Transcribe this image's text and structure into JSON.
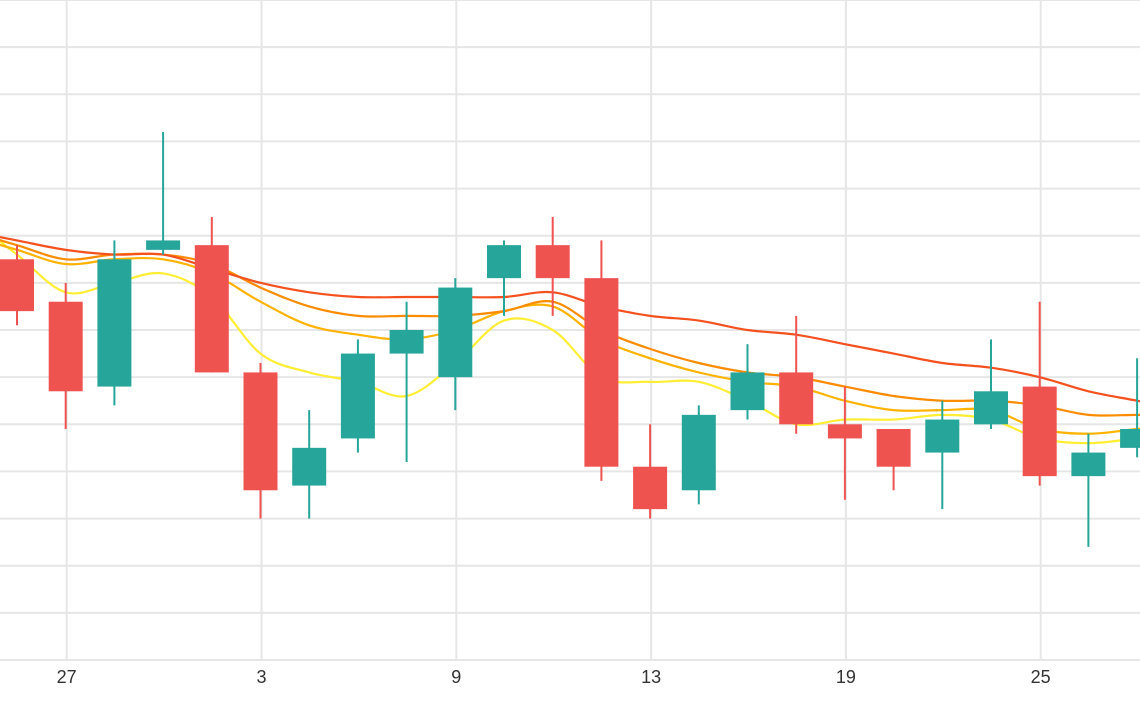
{
  "chart_data": {
    "type": "candlestick",
    "grid": true,
    "x_tick_labels": [
      "27",
      "3",
      "9",
      "13",
      "19",
      "25"
    ],
    "y_tick_labels": [],
    "colors": {
      "up": "#26a69a",
      "down": "#ef5350",
      "grid": "#e6e6e6",
      "ma_fast": "#ffee33",
      "ma_2": "#ffb300",
      "ma_3": "#fb8c00",
      "ma_slow": "#f4511e"
    },
    "ylim": [
      0,
      14
    ],
    "x_ticks_at_index": [
      1,
      5,
      9,
      13,
      17,
      21
    ],
    "candles": [
      {
        "open": 8.5,
        "close": 7.4,
        "high": 8.8,
        "low": 7.1
      },
      {
        "open": 7.6,
        "close": 5.7,
        "high": 8.0,
        "low": 4.9
      },
      {
        "open": 5.8,
        "close": 8.5,
        "high": 8.9,
        "low": 5.4
      },
      {
        "open": 8.7,
        "close": 8.9,
        "high": 11.2,
        "low": 8.6
      },
      {
        "open": 8.8,
        "close": 6.1,
        "high": 9.4,
        "low": 6.1
      },
      {
        "open": 6.1,
        "close": 3.6,
        "high": 6.3,
        "low": 3.0
      },
      {
        "open": 3.7,
        "close": 4.5,
        "high": 5.3,
        "low": 3.0
      },
      {
        "open": 4.7,
        "close": 6.5,
        "high": 6.8,
        "low": 4.4
      },
      {
        "open": 6.5,
        "close": 7.0,
        "high": 7.6,
        "low": 4.2
      },
      {
        "open": 6.0,
        "close": 7.9,
        "high": 8.1,
        "low": 5.3
      },
      {
        "open": 8.1,
        "close": 8.8,
        "high": 8.9,
        "low": 7.3
      },
      {
        "open": 8.8,
        "close": 8.1,
        "high": 9.4,
        "low": 7.3
      },
      {
        "open": 8.1,
        "close": 4.1,
        "high": 8.9,
        "low": 3.8
      },
      {
        "open": 4.1,
        "close": 3.2,
        "high": 5.0,
        "low": 3.0
      },
      {
        "open": 3.6,
        "close": 5.2,
        "high": 5.4,
        "low": 3.3
      },
      {
        "open": 5.3,
        "close": 6.1,
        "high": 6.7,
        "low": 5.1
      },
      {
        "open": 6.1,
        "close": 5.0,
        "high": 7.3,
        "low": 4.8
      },
      {
        "open": 5.0,
        "close": 4.7,
        "high": 5.8,
        "low": 3.4
      },
      {
        "open": 4.9,
        "close": 4.1,
        "high": 4.9,
        "low": 3.6
      },
      {
        "open": 4.4,
        "close": 5.1,
        "high": 5.5,
        "low": 3.2
      },
      {
        "open": 5.0,
        "close": 5.7,
        "high": 6.8,
        "low": 4.9
      },
      {
        "open": 5.8,
        "close": 3.9,
        "high": 7.6,
        "low": 3.7
      },
      {
        "open": 3.9,
        "close": 4.4,
        "high": 4.8,
        "low": 2.4
      },
      {
        "open": 4.5,
        "close": 4.9,
        "high": 6.4,
        "low": 4.3
      }
    ],
    "moving_averages": [
      {
        "key": "ma_fast",
        "values": [
          8.6,
          7.8,
          8.0,
          8.2,
          7.7,
          6.5,
          6.1,
          5.9,
          5.6,
          6.3,
          7.2,
          7.0,
          6.0,
          5.9,
          5.9,
          5.5,
          5.0,
          5.1,
          5.1,
          5.2,
          5.1,
          4.7,
          4.6,
          4.7
        ]
      },
      {
        "key": "ma_2",
        "values": [
          8.7,
          8.4,
          8.5,
          8.5,
          8.2,
          7.6,
          7.1,
          6.9,
          6.8,
          7.0,
          7.4,
          7.5,
          6.8,
          6.4,
          6.1,
          5.9,
          5.8,
          5.5,
          5.3,
          5.3,
          5.3,
          4.9,
          4.8,
          4.9
        ]
      },
      {
        "key": "ma_3",
        "values": [
          8.8,
          8.5,
          8.6,
          8.6,
          8.4,
          7.9,
          7.5,
          7.3,
          7.3,
          7.3,
          7.4,
          7.6,
          7.0,
          6.6,
          6.3,
          6.1,
          6.0,
          5.8,
          5.6,
          5.5,
          5.5,
          5.4,
          5.2,
          5.2
        ]
      },
      {
        "key": "ma_slow",
        "values": [
          8.9,
          8.7,
          8.6,
          8.6,
          8.3,
          8.0,
          7.8,
          7.7,
          7.7,
          7.7,
          7.7,
          7.8,
          7.5,
          7.3,
          7.2,
          7.0,
          6.9,
          6.7,
          6.5,
          6.3,
          6.2,
          6.0,
          5.7,
          5.5
        ]
      }
    ]
  }
}
